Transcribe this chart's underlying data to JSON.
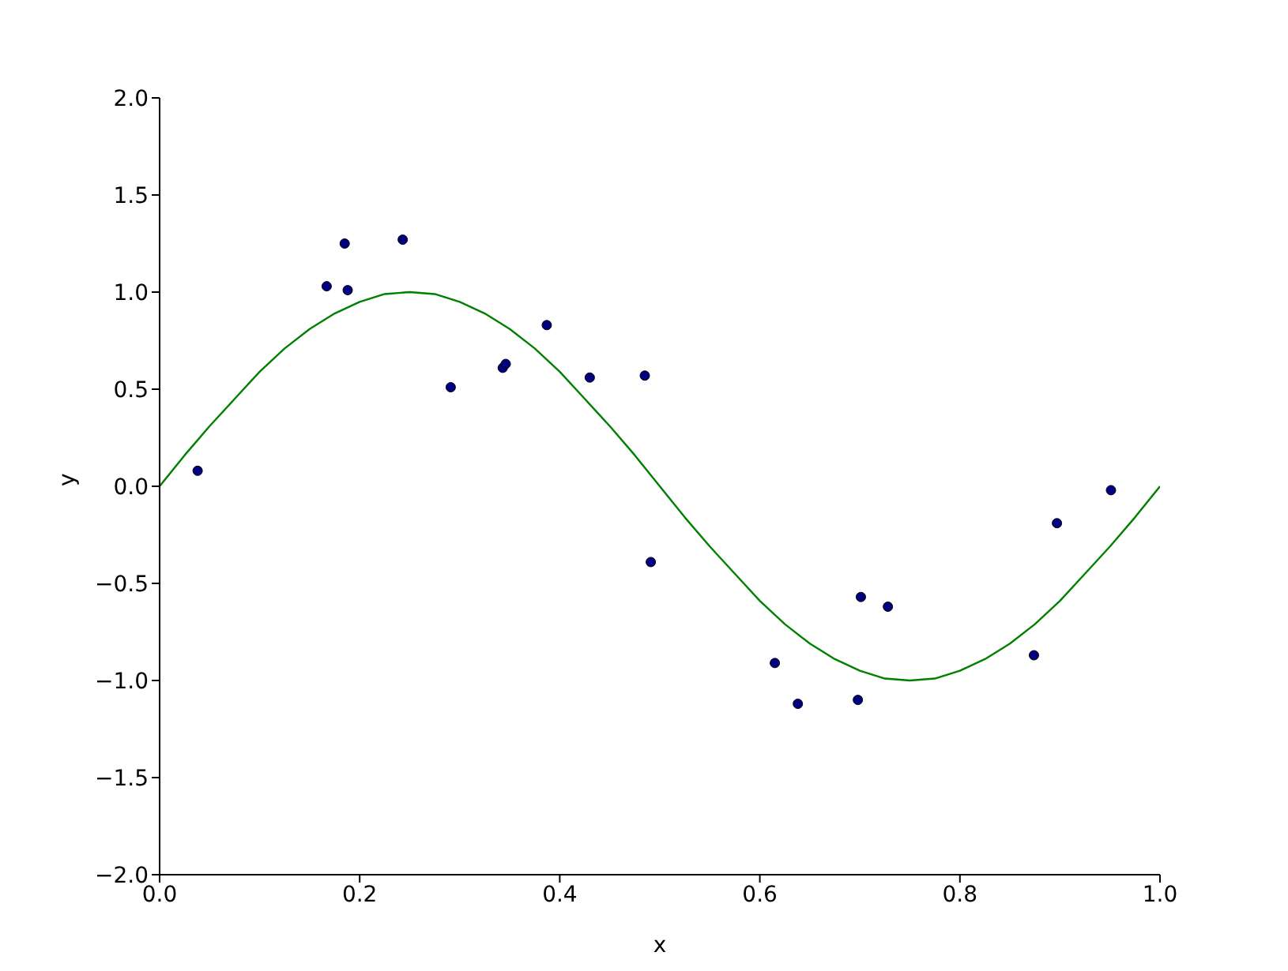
{
  "chart_data": {
    "type": "scatter",
    "xlabel": "x",
    "ylabel": "y",
    "xlim": [
      0,
      1
    ],
    "ylim": [
      -2,
      2
    ],
    "xticks": [
      {
        "value": 0,
        "label": "0.0"
      },
      {
        "value": 0.2,
        "label": "0.2"
      },
      {
        "value": 0.4,
        "label": "0.4"
      },
      {
        "value": 0.6,
        "label": "0.6"
      },
      {
        "value": 0.8,
        "label": "0.8"
      },
      {
        "value": 1,
        "label": "1.0"
      }
    ],
    "yticks": [
      {
        "value": -2,
        "label": "−2.0"
      },
      {
        "value": -1.5,
        "label": "−1.5"
      },
      {
        "value": -1,
        "label": "−1.0"
      },
      {
        "value": -0.5,
        "label": "−0.5"
      },
      {
        "value": 0,
        "label": "0.0"
      },
      {
        "value": 0.5,
        "label": "0.5"
      },
      {
        "value": 1,
        "label": "1.0"
      },
      {
        "value": 1.5,
        "label": "1.5"
      },
      {
        "value": 2,
        "label": "2.0"
      }
    ],
    "grid": false,
    "legend": false,
    "series": [
      {
        "color": "#000080",
        "marker": "circle",
        "x": [
          0.038,
          0.167,
          0.185,
          0.188,
          0.243,
          0.291,
          0.343,
          0.346,
          0.387,
          0.43,
          0.485,
          0.491,
          0.615,
          0.638,
          0.698,
          0.701,
          0.728,
          0.874,
          0.897,
          0.951
        ],
        "values": [
          0.08,
          1.03,
          1.25,
          1.01,
          1.27,
          0.51,
          0.61,
          0.63,
          0.83,
          0.56,
          0.57,
          -0.39,
          -0.91,
          -1.12,
          -1.1,
          -0.57,
          -0.62,
          -0.87,
          -0.19,
          -0.02
        ]
      },
      {
        "type": "line",
        "color": "#008000",
        "marker": "none",
        "line_style": "solid",
        "x": [
          0,
          0.025,
          0.05,
          0.075,
          0.1,
          0.125,
          0.15,
          0.175,
          0.2,
          0.225,
          0.25,
          0.275,
          0.3,
          0.325,
          0.35,
          0.375,
          0.4,
          0.425,
          0.45,
          0.475,
          0.5,
          0.525,
          0.55,
          0.575,
          0.6,
          0.625,
          0.65,
          0.675,
          0.7,
          0.725,
          0.75,
          0.775,
          0.8,
          0.825,
          0.85,
          0.875,
          0.9,
          0.925,
          0.95,
          0.975,
          1
        ],
        "values": [
          0,
          0.16,
          0.31,
          0.45,
          0.59,
          0.71,
          0.81,
          0.89,
          0.95,
          0.99,
          1,
          0.99,
          0.95,
          0.89,
          0.81,
          0.71,
          0.59,
          0.45,
          0.31,
          0.16,
          0,
          -0.16,
          -0.31,
          -0.45,
          -0.59,
          -0.71,
          -0.81,
          -0.89,
          -0.95,
          -0.99,
          -1,
          -0.99,
          -0.95,
          -0.89,
          -0.81,
          -0.71,
          -0.59,
          -0.45,
          -0.31,
          -0.16,
          0
        ]
      }
    ]
  }
}
